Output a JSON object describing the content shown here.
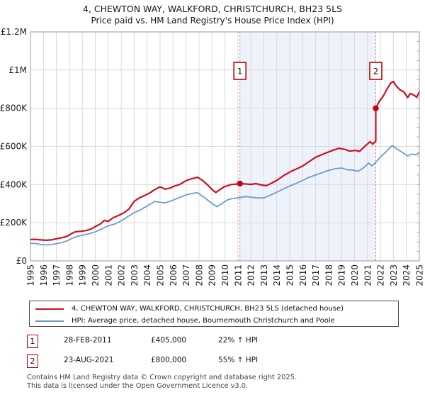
{
  "title": "4, CHEWTON WAY, WALKFORD, CHRISTCHURCH, BH23 5LS",
  "subtitle": "Price paid vs. HM Land Registry's House Price Index (HPI)",
  "colors": {
    "property_line": "#cc1122",
    "hpi_line": "#6f9bcb",
    "sale_band": "#eef2fb",
    "grid": "#d9d9d9",
    "frame": "#9a9a9a",
    "marker_dashed_line": "#e57373",
    "marker_box_border": "#c00000",
    "sale_dot": "#cc0011",
    "tick_text": "#1a1a1a"
  },
  "chart_data": {
    "type": "line",
    "title": "4, CHEWTON WAY, WALKFORD, CHRISTCHURCH, BH23 5LS — Price paid vs. HPI",
    "xlabel": "",
    "ylabel": "",
    "xlim": [
      1995,
      2025
    ],
    "ylim": [
      0,
      1200
    ],
    "grid": true,
    "x_ticks": [
      "1995",
      "1996",
      "1997",
      "1998",
      "1999",
      "2000",
      "2001",
      "2002",
      "2003",
      "2004",
      "2005",
      "2006",
      "2007",
      "2008",
      "2009",
      "2010",
      "2011",
      "2012",
      "2013",
      "2014",
      "2015",
      "2016",
      "2017",
      "2018",
      "2019",
      "2020",
      "2021",
      "2022",
      "2023",
      "2024",
      "2025"
    ],
    "y_ticks": [
      {
        "value": 0,
        "label": "£0"
      },
      {
        "value": 200,
        "label": "£200K"
      },
      {
        "value": 400,
        "label": "£400K"
      },
      {
        "value": 600,
        "label": "£600K"
      },
      {
        "value": 800,
        "label": "£800K"
      },
      {
        "value": 1000,
        "label": "£1M"
      },
      {
        "value": 1200,
        "label": "£1.2M"
      }
    ],
    "y_unit": "thousands_gbp",
    "sale_band": {
      "from": 2011.16,
      "to": 2021.64
    },
    "sale_markers": [
      {
        "label": "1",
        "year": 2011.16,
        "value": 405
      },
      {
        "label": "2",
        "year": 2021.64,
        "value": 800
      }
    ],
    "series": [
      {
        "name": "4, CHEWTON WAY, WALKFORD, CHRISTCHURCH, BH23 5LS (detached house)",
        "color_key": "property_line",
        "width": 2.2,
        "points": [
          [
            1995.0,
            112
          ],
          [
            1995.4,
            113
          ],
          [
            1995.8,
            110
          ],
          [
            1996.2,
            108
          ],
          [
            1996.6,
            110
          ],
          [
            1997.0,
            116
          ],
          [
            1997.4,
            121
          ],
          [
            1997.8,
            128
          ],
          [
            1998.2,
            144
          ],
          [
            1998.5,
            153
          ],
          [
            1998.9,
            155
          ],
          [
            1999.3,
            159
          ],
          [
            1999.7,
            167
          ],
          [
            2000.0,
            180
          ],
          [
            2000.4,
            194
          ],
          [
            2000.7,
            212
          ],
          [
            2001.0,
            207
          ],
          [
            2001.4,
            227
          ],
          [
            2001.8,
            238
          ],
          [
            2002.2,
            252
          ],
          [
            2002.6,
            272
          ],
          [
            2003.0,
            312
          ],
          [
            2003.4,
            330
          ],
          [
            2003.8,
            342
          ],
          [
            2004.2,
            356
          ],
          [
            2004.6,
            374
          ],
          [
            2005.0,
            388
          ],
          [
            2005.4,
            376
          ],
          [
            2005.8,
            382
          ],
          [
            2006.1,
            392
          ],
          [
            2006.5,
            400
          ],
          [
            2007.0,
            420
          ],
          [
            2007.4,
            430
          ],
          [
            2007.9,
            438
          ],
          [
            2008.3,
            420
          ],
          [
            2008.7,
            396
          ],
          [
            2009.0,
            374
          ],
          [
            2009.3,
            358
          ],
          [
            2009.7,
            378
          ],
          [
            2010.0,
            390
          ],
          [
            2010.5,
            400
          ],
          [
            2011.0,
            403
          ],
          [
            2011.16,
            405
          ],
          [
            2011.6,
            403
          ],
          [
            2012.0,
            401
          ],
          [
            2012.4,
            405
          ],
          [
            2012.8,
            398
          ],
          [
            2013.2,
            394
          ],
          [
            2013.6,
            407
          ],
          [
            2014.0,
            422
          ],
          [
            2014.6,
            450
          ],
          [
            2015.0,
            465
          ],
          [
            2015.5,
            481
          ],
          [
            2016.0,
            497
          ],
          [
            2016.5,
            520
          ],
          [
            2017.0,
            543
          ],
          [
            2017.7,
            563
          ],
          [
            2018.3,
            579
          ],
          [
            2018.8,
            590
          ],
          [
            2019.3,
            584
          ],
          [
            2019.6,
            575
          ],
          [
            2020.1,
            579
          ],
          [
            2020.4,
            574
          ],
          [
            2020.9,
            607
          ],
          [
            2021.2,
            625
          ],
          [
            2021.4,
            612
          ],
          [
            2021.64,
            628
          ],
          [
            2021.64,
            800
          ],
          [
            2021.9,
            835
          ],
          [
            2022.2,
            862
          ],
          [
            2022.5,
            900
          ],
          [
            2022.8,
            932
          ],
          [
            2023.0,
            940
          ],
          [
            2023.2,
            918
          ],
          [
            2023.5,
            897
          ],
          [
            2023.8,
            886
          ],
          [
            2024.1,
            856
          ],
          [
            2024.3,
            877
          ],
          [
            2024.6,
            868
          ],
          [
            2024.8,
            858
          ],
          [
            2025.0,
            886
          ]
        ]
      },
      {
        "name": "HPI: Average price, detached house, Bournemouth Christchurch and Poole",
        "color_key": "hpi_line",
        "width": 1.8,
        "points": [
          [
            1995.0,
            92
          ],
          [
            1995.4,
            91
          ],
          [
            1995.8,
            86
          ],
          [
            1996.2,
            84
          ],
          [
            1996.6,
            85
          ],
          [
            1997.0,
            90
          ],
          [
            1997.4,
            96
          ],
          [
            1997.8,
            104
          ],
          [
            1998.2,
            118
          ],
          [
            1998.6,
            128
          ],
          [
            1999.0,
            134
          ],
          [
            1999.5,
            142
          ],
          [
            2000.0,
            152
          ],
          [
            2000.5,
            167
          ],
          [
            2001.0,
            184
          ],
          [
            2001.5,
            193
          ],
          [
            2002.0,
            210
          ],
          [
            2002.5,
            232
          ],
          [
            2003.0,
            253
          ],
          [
            2003.5,
            268
          ],
          [
            2004.0,
            288
          ],
          [
            2004.6,
            312
          ],
          [
            2005.0,
            307
          ],
          [
            2005.4,
            304
          ],
          [
            2006.0,
            318
          ],
          [
            2006.5,
            332
          ],
          [
            2007.0,
            346
          ],
          [
            2007.5,
            354
          ],
          [
            2007.9,
            357
          ],
          [
            2008.4,
            333
          ],
          [
            2009.0,
            301
          ],
          [
            2009.4,
            284
          ],
          [
            2009.8,
            302
          ],
          [
            2010.2,
            320
          ],
          [
            2010.6,
            327
          ],
          [
            2011.16,
            332
          ],
          [
            2011.6,
            337
          ],
          [
            2012.0,
            334
          ],
          [
            2012.5,
            330
          ],
          [
            2013.0,
            330
          ],
          [
            2013.5,
            344
          ],
          [
            2014.0,
            360
          ],
          [
            2014.5,
            377
          ],
          [
            2015.0,
            392
          ],
          [
            2015.5,
            406
          ],
          [
            2016.0,
            422
          ],
          [
            2016.5,
            438
          ],
          [
            2017.0,
            450
          ],
          [
            2017.5,
            462
          ],
          [
            2018.0,
            474
          ],
          [
            2018.5,
            483
          ],
          [
            2019.0,
            487
          ],
          [
            2019.4,
            478
          ],
          [
            2019.9,
            475
          ],
          [
            2020.3,
            470
          ],
          [
            2020.7,
            488
          ],
          [
            2021.1,
            513
          ],
          [
            2021.35,
            498
          ],
          [
            2021.64,
            516
          ],
          [
            2022.0,
            545
          ],
          [
            2022.4,
            570
          ],
          [
            2022.9,
            604
          ],
          [
            2023.2,
            590
          ],
          [
            2023.6,
            572
          ],
          [
            2024.1,
            550
          ],
          [
            2024.4,
            560
          ],
          [
            2024.7,
            556
          ],
          [
            2025.0,
            568
          ]
        ]
      }
    ]
  },
  "legend": {
    "items": [
      {
        "label": "4, CHEWTON WAY, WALKFORD, CHRISTCHURCH, BH23 5LS (detached house)",
        "color_key": "property_line"
      },
      {
        "label": "HPI: Average price, detached house, Bournemouth Christchurch and Poole",
        "color_key": "hpi_line"
      }
    ]
  },
  "transactions": [
    {
      "num": "1",
      "date": "28-FEB-2011",
      "price": "£405,000",
      "hpi_change": "22% ↑ HPI"
    },
    {
      "num": "2",
      "date": "23-AUG-2021",
      "price": "£800,000",
      "hpi_change": "55% ↑ HPI"
    }
  ],
  "footer": {
    "line1": "Contains HM Land Registry data © Crown copyright and database right 2025.",
    "line2": "This data is licensed under the Open Government Licence v3.0."
  }
}
